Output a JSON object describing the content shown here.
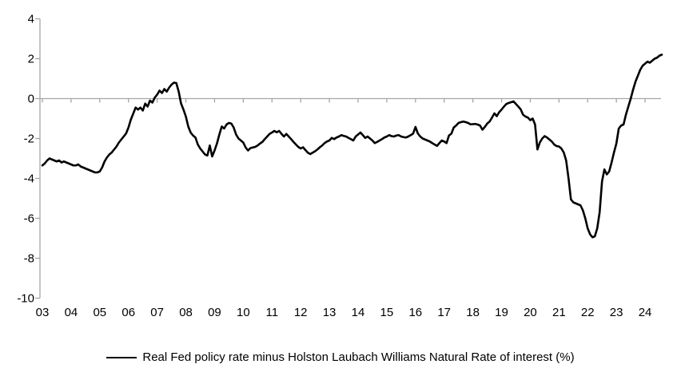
{
  "chart_data": {
    "type": "line",
    "title": "",
    "xlabel": "",
    "ylabel": "",
    "ylim": [
      -10,
      4
    ],
    "y_ticks": [
      4,
      2,
      0,
      -2,
      -4,
      -6,
      -8,
      -10
    ],
    "x_tick_labels": [
      "03",
      "04",
      "05",
      "06",
      "07",
      "08",
      "09",
      "10",
      "11",
      "12",
      "13",
      "14",
      "15",
      "16",
      "17",
      "18",
      "19",
      "20",
      "21",
      "22",
      "23",
      "24"
    ],
    "x_start": "2003-01",
    "x_end": "2024-08",
    "frequency": "monthly",
    "grid": "zero-line-only",
    "legend_position": "bottom-center",
    "axis_color": "#a6a6a6",
    "background_color": "#ffffff",
    "series": [
      {
        "name": "Real Fed policy rate minus Holston Laubach Williams Natural Rate of interest (%)",
        "color": "#000000",
        "line_width": 2.6,
        "values": [
          -3.35,
          -3.25,
          -3.1,
          -3.0,
          -3.05,
          -3.1,
          -3.15,
          -3.1,
          -3.2,
          -3.15,
          -3.2,
          -3.25,
          -3.3,
          -3.35,
          -3.35,
          -3.3,
          -3.4,
          -3.45,
          -3.5,
          -3.55,
          -3.6,
          -3.65,
          -3.7,
          -3.7,
          -3.65,
          -3.45,
          -3.15,
          -2.95,
          -2.8,
          -2.7,
          -2.55,
          -2.4,
          -2.2,
          -2.05,
          -1.9,
          -1.75,
          -1.45,
          -1.05,
          -0.75,
          -0.45,
          -0.55,
          -0.45,
          -0.6,
          -0.25,
          -0.4,
          -0.1,
          -0.2,
          0.05,
          0.2,
          0.4,
          0.28,
          0.48,
          0.35,
          0.55,
          0.7,
          0.8,
          0.78,
          0.35,
          -0.25,
          -0.55,
          -0.9,
          -1.4,
          -1.7,
          -1.85,
          -1.95,
          -2.3,
          -2.5,
          -2.65,
          -2.8,
          -2.85,
          -2.35,
          -2.9,
          -2.6,
          -2.25,
          -1.8,
          -1.4,
          -1.5,
          -1.3,
          -1.22,
          -1.25,
          -1.45,
          -1.8,
          -2.0,
          -2.1,
          -2.2,
          -2.45,
          -2.6,
          -2.48,
          -2.45,
          -2.42,
          -2.35,
          -2.25,
          -2.17,
          -2.03,
          -1.9,
          -1.77,
          -1.7,
          -1.62,
          -1.69,
          -1.62,
          -1.77,
          -1.9,
          -1.77,
          -1.9,
          -2.03,
          -2.17,
          -2.3,
          -2.42,
          -2.5,
          -2.44,
          -2.58,
          -2.71,
          -2.78,
          -2.71,
          -2.64,
          -2.55,
          -2.44,
          -2.35,
          -2.23,
          -2.15,
          -2.1,
          -1.97,
          -2.03,
          -1.95,
          -1.9,
          -1.83,
          -1.87,
          -1.9,
          -1.97,
          -2.03,
          -2.1,
          -1.9,
          -1.8,
          -1.7,
          -1.83,
          -1.97,
          -1.9,
          -2.0,
          -2.1,
          -2.23,
          -2.17,
          -2.1,
          -2.03,
          -1.95,
          -1.9,
          -1.83,
          -1.88,
          -1.9,
          -1.85,
          -1.83,
          -1.9,
          -1.93,
          -1.95,
          -1.9,
          -1.83,
          -1.76,
          -1.42,
          -1.75,
          -1.9,
          -2.0,
          -2.05,
          -2.1,
          -2.15,
          -2.23,
          -2.3,
          -2.37,
          -2.23,
          -2.1,
          -2.15,
          -2.23,
          -1.85,
          -1.76,
          -1.45,
          -1.35,
          -1.22,
          -1.18,
          -1.15,
          -1.18,
          -1.22,
          -1.29,
          -1.28,
          -1.27,
          -1.3,
          -1.35,
          -1.56,
          -1.42,
          -1.25,
          -1.15,
          -0.95,
          -0.74,
          -0.88,
          -0.68,
          -0.55,
          -0.4,
          -0.27,
          -0.22,
          -0.18,
          -0.14,
          -0.27,
          -0.4,
          -0.54,
          -0.81,
          -0.9,
          -0.95,
          -1.08,
          -1.0,
          -1.3,
          -2.55,
          -2.2,
          -2.0,
          -1.88,
          -1.95,
          -2.05,
          -2.15,
          -2.3,
          -2.38,
          -2.4,
          -2.5,
          -2.7,
          -3.1,
          -4.0,
          -5.05,
          -5.2,
          -5.25,
          -5.3,
          -5.35,
          -5.6,
          -6.0,
          -6.5,
          -6.8,
          -6.95,
          -6.9,
          -6.5,
          -5.7,
          -4.15,
          -3.55,
          -3.8,
          -3.65,
          -3.2,
          -2.7,
          -2.25,
          -1.5,
          -1.35,
          -1.3,
          -0.8,
          -0.4,
          0.0,
          0.45,
          0.85,
          1.15,
          1.45,
          1.65,
          1.75,
          1.85,
          1.8,
          1.9,
          2.0,
          2.05,
          2.15,
          2.2
        ]
      }
    ]
  }
}
